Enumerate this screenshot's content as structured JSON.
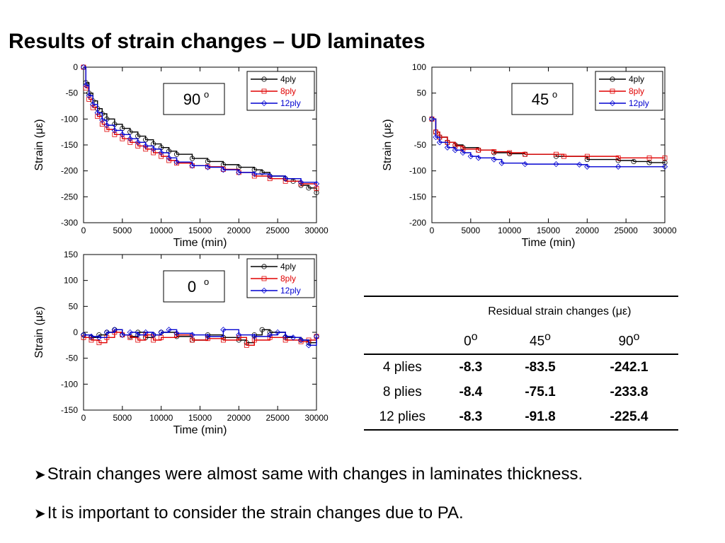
{
  "slide": {
    "title": "Results of strain changes – UD laminates",
    "bullets": [
      "Strain changes were almost same with changes in laminates thickness.",
      "It is important to consider the strain changes due to PA."
    ],
    "bullet_icon": "arrow-bullet-icon"
  },
  "colors": {
    "4ply": "#000000",
    "8ply": "#e00000",
    "12ply": "#0000d0"
  },
  "chart_data": [
    {
      "id": "chart-90",
      "type": "line",
      "tag": "90",
      "tag_sup": "o",
      "xlabel": "Time (min)",
      "ylabel": "Strain (με)",
      "xlim": [
        0,
        30000
      ],
      "ylim": [
        -300,
        0
      ],
      "xticks": [
        0,
        5000,
        10000,
        15000,
        20000,
        25000,
        30000
      ],
      "yticks": [
        0,
        -50,
        -100,
        -150,
        -200,
        -250,
        -300
      ],
      "legend_position": "top-right",
      "series": [
        {
          "name": "4ply",
          "marker": "circle",
          "points": [
            [
              0,
              0
            ],
            [
              300,
              -30
            ],
            [
              700,
              -50
            ],
            [
              1200,
              -65
            ],
            [
              1800,
              -80
            ],
            [
              2400,
              -90
            ],
            [
              3000,
              -100
            ],
            [
              4000,
              -110
            ],
            [
              5000,
              -118
            ],
            [
              6000,
              -125
            ],
            [
              7000,
              -133
            ],
            [
              8000,
              -140
            ],
            [
              9000,
              -148
            ],
            [
              10000,
              -155
            ],
            [
              11000,
              -162
            ],
            [
              12000,
              -168
            ],
            [
              14000,
              -176
            ],
            [
              16000,
              -182
            ],
            [
              18000,
              -188
            ],
            [
              20000,
              -193
            ],
            [
              22000,
              -198
            ],
            [
              23000,
              -203
            ],
            [
              24000,
              -210
            ],
            [
              26000,
              -215
            ],
            [
              27000,
              -220
            ],
            [
              28000,
              -228
            ],
            [
              29000,
              -233
            ],
            [
              30000,
              -242
            ]
          ]
        },
        {
          "name": "8ply",
          "marker": "square",
          "points": [
            [
              0,
              0
            ],
            [
              300,
              -40
            ],
            [
              700,
              -62
            ],
            [
              1200,
              -78
            ],
            [
              1800,
              -95
            ],
            [
              2400,
              -110
            ],
            [
              3000,
              -120
            ],
            [
              4000,
              -130
            ],
            [
              5000,
              -138
            ],
            [
              6000,
              -145
            ],
            [
              7000,
              -152
            ],
            [
              8000,
              -158
            ],
            [
              9000,
              -165
            ],
            [
              10000,
              -172
            ],
            [
              11000,
              -180
            ],
            [
              12000,
              -185
            ],
            [
              14000,
              -190
            ],
            [
              16000,
              -192
            ],
            [
              18000,
              -197
            ],
            [
              20000,
              -203
            ],
            [
              22000,
              -210
            ],
            [
              24000,
              -215
            ],
            [
              26000,
              -220
            ],
            [
              28000,
              -225
            ],
            [
              30000,
              -234
            ]
          ]
        },
        {
          "name": "12ply",
          "marker": "diamond",
          "points": [
            [
              0,
              0
            ],
            [
              300,
              -35
            ],
            [
              700,
              -55
            ],
            [
              1200,
              -72
            ],
            [
              1800,
              -88
            ],
            [
              2400,
              -102
            ],
            [
              3000,
              -112
            ],
            [
              4000,
              -122
            ],
            [
              5000,
              -130
            ],
            [
              6000,
              -138
            ],
            [
              7000,
              -145
            ],
            [
              8000,
              -152
            ],
            [
              9000,
              -158
            ],
            [
              10000,
              -165
            ],
            [
              11000,
              -175
            ],
            [
              12000,
              -183
            ],
            [
              14000,
              -190
            ],
            [
              16000,
              -193
            ],
            [
              18000,
              -198
            ],
            [
              20000,
              -203
            ],
            [
              22000,
              -206
            ],
            [
              24000,
              -210
            ],
            [
              26000,
              -215
            ],
            [
              28000,
              -222
            ],
            [
              30000,
              -225
            ]
          ]
        }
      ]
    },
    {
      "id": "chart-45",
      "type": "line",
      "tag": "45",
      "tag_sup": "o",
      "xlabel": "Time (min)",
      "ylabel": "Strain (με)",
      "xlim": [
        0,
        30000
      ],
      "ylim": [
        -200,
        100
      ],
      "xticks": [
        0,
        5000,
        10000,
        15000,
        20000,
        25000,
        30000
      ],
      "yticks": [
        100,
        50,
        0,
        -50,
        -100,
        -150,
        -200
      ],
      "legend_position": "top-right",
      "series": [
        {
          "name": "4ply",
          "marker": "circle",
          "points": [
            [
              0,
              0
            ],
            [
              500,
              -25
            ],
            [
              1000,
              -35
            ],
            [
              2000,
              -45
            ],
            [
              3000,
              -50
            ],
            [
              4000,
              -55
            ],
            [
              6000,
              -60
            ],
            [
              8000,
              -65
            ],
            [
              10000,
              -67
            ],
            [
              12000,
              -68
            ],
            [
              16000,
              -72
            ],
            [
              20000,
              -78
            ],
            [
              24000,
              -80
            ],
            [
              26000,
              -82
            ],
            [
              28000,
              -84
            ],
            [
              30000,
              -84
            ]
          ]
        },
        {
          "name": "8ply",
          "marker": "square",
          "points": [
            [
              0,
              0
            ],
            [
              500,
              -25
            ],
            [
              1000,
              -35
            ],
            [
              2000,
              -45
            ],
            [
              3000,
              -52
            ],
            [
              4000,
              -58
            ],
            [
              6000,
              -60
            ],
            [
              8000,
              -63
            ],
            [
              10000,
              -65
            ],
            [
              12000,
              -68
            ],
            [
              16000,
              -68
            ],
            [
              17000,
              -72
            ],
            [
              20000,
              -72
            ],
            [
              24000,
              -75
            ],
            [
              28000,
              -75
            ],
            [
              30000,
              -75
            ]
          ]
        },
        {
          "name": "12ply",
          "marker": "diamond",
          "points": [
            [
              0,
              0
            ],
            [
              500,
              -35
            ],
            [
              1000,
              -45
            ],
            [
              2000,
              -55
            ],
            [
              3000,
              -60
            ],
            [
              4000,
              -65
            ],
            [
              5000,
              -72
            ],
            [
              6000,
              -75
            ],
            [
              8000,
              -78
            ],
            [
              9000,
              -85
            ],
            [
              12000,
              -87
            ],
            [
              16000,
              -87
            ],
            [
              19000,
              -88
            ],
            [
              20000,
              -92
            ],
            [
              24000,
              -92
            ],
            [
              30000,
              -92
            ]
          ]
        }
      ]
    },
    {
      "id": "chart-0",
      "type": "line",
      "tag": "0",
      "tag_sup": "o",
      "xlabel": "Time (min)",
      "ylabel": "Strain (με)",
      "xlim": [
        0,
        30000
      ],
      "ylim": [
        -150,
        150
      ],
      "xticks": [
        0,
        5000,
        10000,
        15000,
        20000,
        25000,
        30000
      ],
      "yticks": [
        150,
        100,
        50,
        0,
        -50,
        -100,
        -150
      ],
      "legend_position": "top-right",
      "series": [
        {
          "name": "4ply",
          "marker": "circle",
          "points": [
            [
              0,
              -5
            ],
            [
              1000,
              -10
            ],
            [
              2000,
              -5
            ],
            [
              3000,
              0
            ],
            [
              4000,
              5
            ],
            [
              5000,
              -5
            ],
            [
              6000,
              -8
            ],
            [
              7000,
              0
            ],
            [
              8000,
              -10
            ],
            [
              9000,
              -5
            ],
            [
              10000,
              0
            ],
            [
              12000,
              -8
            ],
            [
              14000,
              -15
            ],
            [
              16000,
              -5
            ],
            [
              18000,
              -10
            ],
            [
              20000,
              -15
            ],
            [
              21000,
              -20
            ],
            [
              22000,
              -5
            ],
            [
              23000,
              5
            ],
            [
              24000,
              0
            ],
            [
              26000,
              -10
            ],
            [
              28000,
              -15
            ],
            [
              29000,
              -20
            ],
            [
              30000,
              -8
            ]
          ]
        },
        {
          "name": "8ply",
          "marker": "square",
          "points": [
            [
              0,
              -10
            ],
            [
              1000,
              -15
            ],
            [
              2000,
              -20
            ],
            [
              3000,
              -10
            ],
            [
              4000,
              0
            ],
            [
              5000,
              -5
            ],
            [
              6000,
              -10
            ],
            [
              7000,
              -15
            ],
            [
              8000,
              -5
            ],
            [
              9000,
              -15
            ],
            [
              10000,
              -10
            ],
            [
              12000,
              -5
            ],
            [
              14000,
              -15
            ],
            [
              16000,
              -12
            ],
            [
              18000,
              -15
            ],
            [
              20000,
              -10
            ],
            [
              21000,
              -25
            ],
            [
              22000,
              -15
            ],
            [
              24000,
              -10
            ],
            [
              26000,
              -15
            ],
            [
              28000,
              -18
            ],
            [
              29000,
              -15
            ],
            [
              30000,
              -8
            ]
          ]
        },
        {
          "name": "12ply",
          "marker": "diamond",
          "points": [
            [
              0,
              -5
            ],
            [
              1000,
              -8
            ],
            [
              2000,
              -10
            ],
            [
              3000,
              0
            ],
            [
              4000,
              5
            ],
            [
              5000,
              -5
            ],
            [
              6000,
              0
            ],
            [
              7000,
              -5
            ],
            [
              8000,
              0
            ],
            [
              9000,
              -5
            ],
            [
              10000,
              0
            ],
            [
              11000,
              5
            ],
            [
              12000,
              -2
            ],
            [
              14000,
              -5
            ],
            [
              16000,
              -8
            ],
            [
              18000,
              5
            ],
            [
              20000,
              -5
            ],
            [
              22000,
              -8
            ],
            [
              24000,
              -5
            ],
            [
              25000,
              0
            ],
            [
              26000,
              -8
            ],
            [
              27000,
              -10
            ],
            [
              28000,
              -15
            ],
            [
              29000,
              -25
            ],
            [
              30000,
              -8
            ]
          ]
        }
      ]
    },
    {
      "id": "residual-table",
      "type": "table",
      "caption": "Residual strain changes (με)",
      "columns": [
        "0",
        "45",
        "90"
      ],
      "column_sup": "o",
      "rows": [
        {
          "label": "4 plies",
          "values": [
            "-8.3",
            "-83.5",
            "-242.1"
          ]
        },
        {
          "label": "8 plies",
          "values": [
            "-8.4",
            "-75.1",
            "-233.8"
          ]
        },
        {
          "label": "12 plies",
          "values": [
            "-8.3",
            "-91.8",
            "-225.4"
          ]
        }
      ]
    }
  ]
}
